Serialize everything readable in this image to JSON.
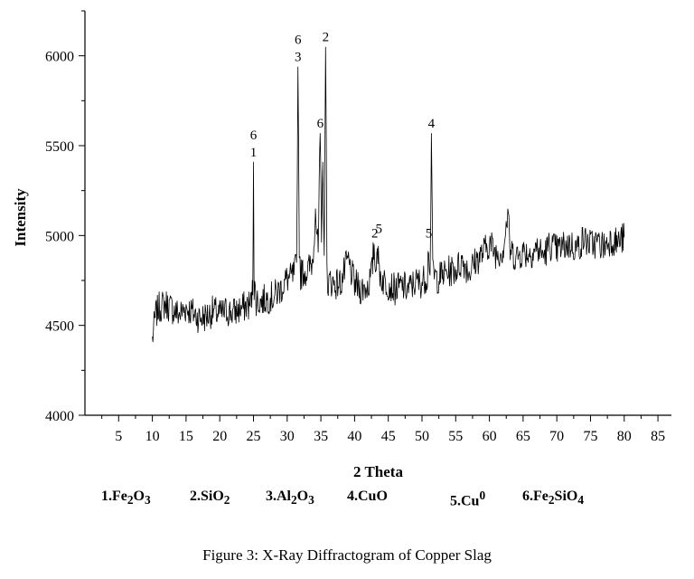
{
  "chart_data": {
    "type": "line",
    "title": "",
    "xlabel": "2 Theta",
    "ylabel": "Intensity",
    "xlim": [
      0,
      87
    ],
    "ylim": [
      4000,
      6250
    ],
    "x_ticks": [
      5,
      10,
      15,
      20,
      25,
      30,
      35,
      40,
      45,
      50,
      55,
      60,
      65,
      70,
      75,
      80,
      85
    ],
    "y_ticks": [
      4000,
      4500,
      5000,
      5500,
      6000
    ],
    "grid": false,
    "line_color": "#000000",
    "series": [
      {
        "x": [
          10,
          10.5,
          11,
          12,
          13,
          14,
          15,
          16,
          17,
          18,
          19,
          20,
          21,
          22,
          23,
          24,
          24.6,
          24.9,
          25.0,
          25.1,
          25.4,
          26,
          27,
          28,
          29,
          30,
          30.5,
          31,
          31.4,
          31.6,
          31.8,
          32.0,
          32.3,
          33,
          33.8,
          34.2,
          34.6,
          34.9,
          35.1,
          35.3,
          35.5,
          35.7,
          35.9,
          36.1,
          36.4,
          37,
          38,
          39,
          40,
          41,
          42,
          42.6,
          42.9,
          43.1,
          43.3,
          43.6,
          44,
          44.5,
          45,
          46,
          47,
          48,
          49,
          50,
          50.8,
          51.0,
          51.2,
          51.4,
          51.6,
          51.9,
          52.2,
          53,
          54,
          55,
          56,
          57,
          58,
          59,
          60,
          61,
          62,
          62.8,
          63,
          64,
          65,
          66,
          67,
          68,
          69,
          70,
          71,
          72,
          73,
          74,
          75,
          76,
          77,
          78,
          79,
          80
        ],
        "y": [
          4420,
          4560,
          4600,
          4620,
          4590,
          4560,
          4600,
          4570,
          4540,
          4550,
          4580,
          4560,
          4580,
          4570,
          4590,
          4610,
          4620,
          4700,
          5410,
          4720,
          4640,
          4630,
          4650,
          4660,
          4700,
          4760,
          4760,
          4780,
          4840,
          5940,
          4950,
          4780,
          4800,
          4800,
          4860,
          5150,
          4900,
          5570,
          4950,
          5410,
          4950,
          6050,
          4820,
          4720,
          4750,
          4730,
          4740,
          4860,
          4730,
          4700,
          4720,
          4800,
          4960,
          4780,
          4980,
          4820,
          4760,
          4740,
          4730,
          4700,
          4720,
          4700,
          4740,
          4740,
          4780,
          4960,
          4760,
          5570,
          4780,
          4780,
          4760,
          4780,
          4800,
          4810,
          4860,
          4800,
          4860,
          4900,
          4960,
          4900,
          4920,
          5130,
          4920,
          4880,
          4910,
          4900,
          4930,
          4890,
          4950,
          4920,
          4940,
          4950,
          4930,
          4980,
          4950,
          4960,
          4940,
          4980,
          4960,
          4990
        ]
      }
    ],
    "annotations": [
      {
        "x": 25.0,
        "y": 5410,
        "lines": [
          "6",
          "1"
        ]
      },
      {
        "x": 31.6,
        "y": 5940,
        "lines": [
          "6",
          "3"
        ]
      },
      {
        "x": 35.7,
        "y": 6050,
        "lines": [
          "2"
        ]
      },
      {
        "x": 34.9,
        "y": 5570,
        "lines": [
          "6"
        ]
      },
      {
        "x": 43.0,
        "y": 4960,
        "lines": [
          "2"
        ]
      },
      {
        "x": 43.6,
        "y": 4985,
        "lines": [
          "5"
        ]
      },
      {
        "x": 51.0,
        "y": 4960,
        "lines": [
          "5"
        ]
      },
      {
        "x": 51.4,
        "y": 5570,
        "lines": [
          "4"
        ]
      }
    ]
  },
  "legend": [
    {
      "num": "1.",
      "text": "Fe",
      "sub1": "2",
      "mid": "O",
      "sub2": "3"
    },
    {
      "num": "2.",
      "text": "SiO",
      "sub1": "2",
      "mid": "",
      "sub2": ""
    },
    {
      "num": "3.",
      "text": "Al",
      "sub1": "2",
      "mid": "O",
      "sub2": "3"
    },
    {
      "num": "4.",
      "text": "CuO",
      "sub1": "",
      "mid": "",
      "sub2": ""
    },
    {
      "num": "5.",
      "text": "Cu",
      "sup": "0"
    },
    {
      "num": "6.",
      "text": "Fe",
      "sub1": "2",
      "mid": "SiO",
      "sub2": "4"
    }
  ],
  "caption": "Figure 3: X-Ray Diffractogram of Copper Slag"
}
